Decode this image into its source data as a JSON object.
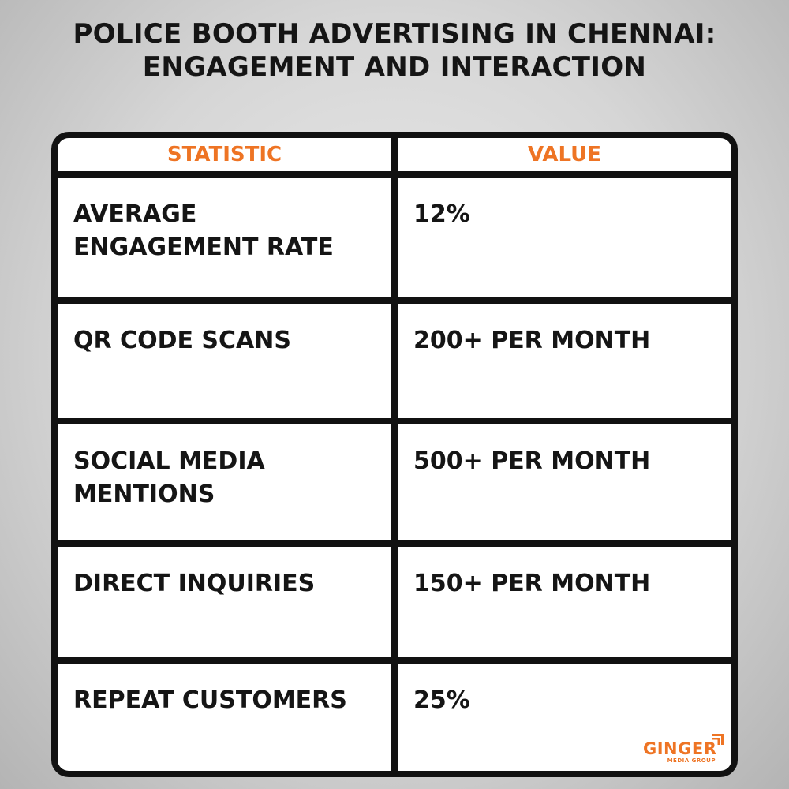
{
  "header": {
    "title": [
      "POLICE BOOTH ADVERTISING IN CHENNAI:",
      "ENGAGEMENT AND INTERACTION"
    ]
  },
  "table": {
    "columns": [
      "STATISTIC",
      "VALUE"
    ],
    "rows": [
      [
        "AVERAGE ENGAGEMENT RATE",
        "12%"
      ],
      [
        "QR CODE SCANS",
        "200+ PER MONTH"
      ],
      [
        "SOCIAL MEDIA MENTIONS",
        "500+ PER MONTH"
      ],
      [
        "DIRECT INQUIRIES",
        "150+ PER MONTH"
      ],
      [
        "REPEAT CUSTOMERS",
        "25%"
      ]
    ]
  },
  "logo": {
    "name": "GINGER",
    "tagline": "MEDIA GROUP"
  }
}
